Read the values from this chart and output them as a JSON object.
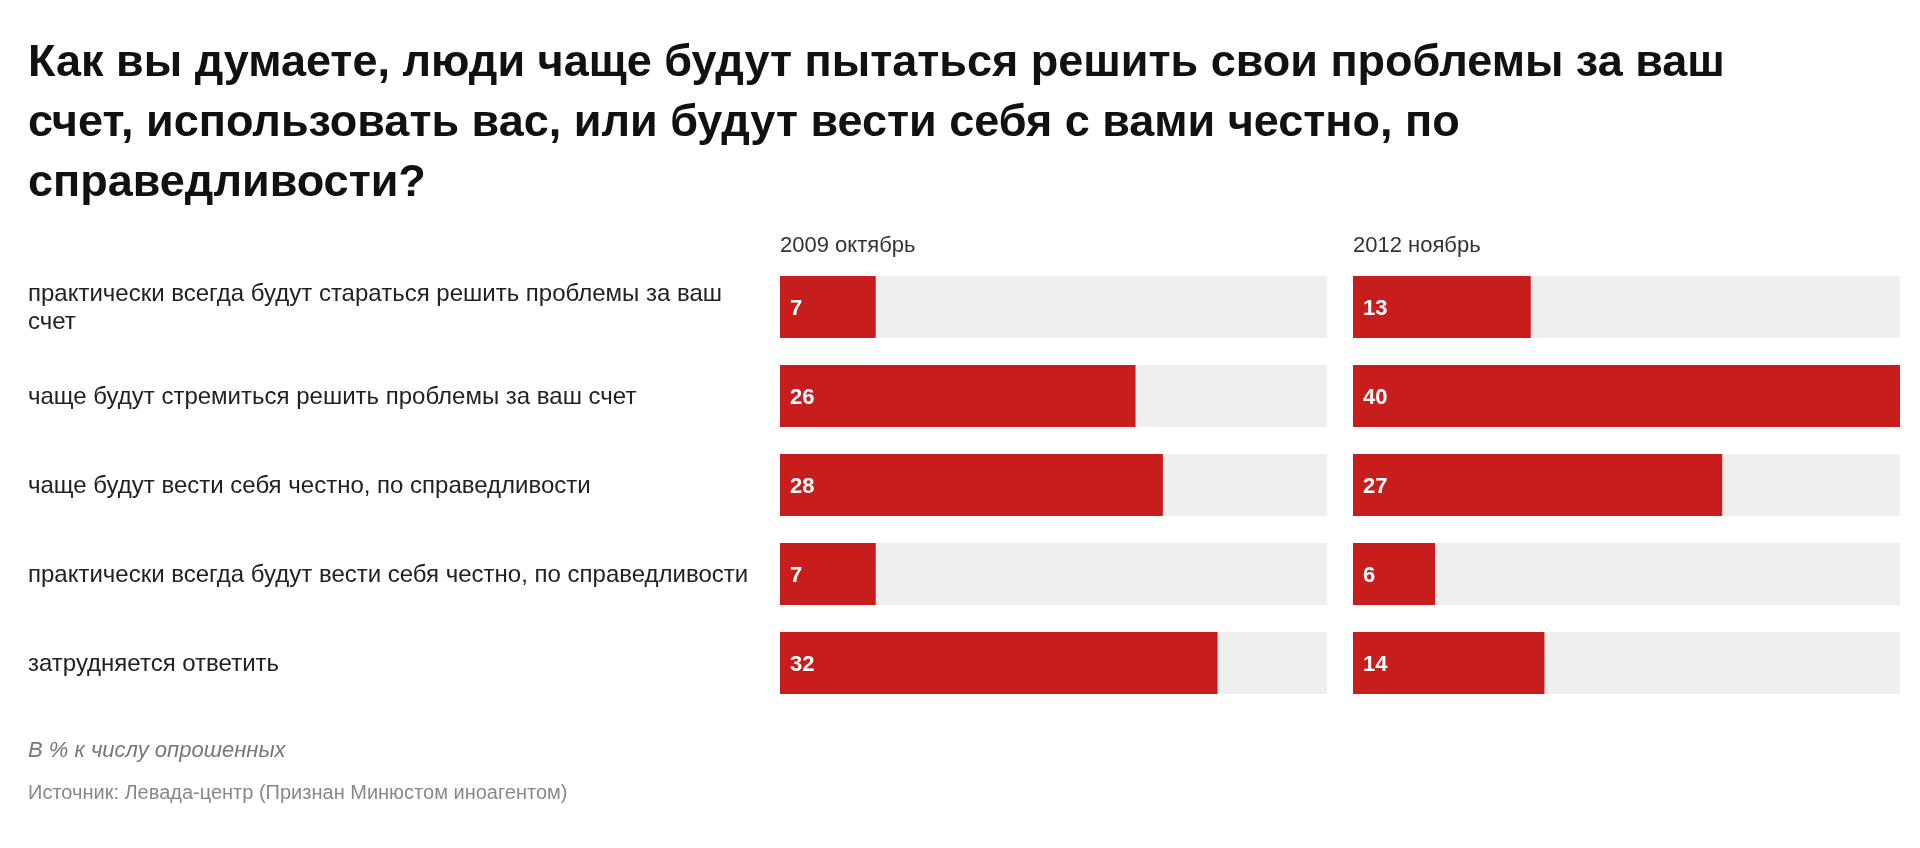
{
  "chart_data": [
    {
      "type": "bar",
      "orientation": "horizontal",
      "title": "Как вы думаете, люди чаще будут пытаться решить свои проблемы за ваш счет, использовать вас, или будут вести себя с вами честно, по справедливости?",
      "subtitle": "2009 октябрь",
      "categories": [
        "практически всегда будут стараться решить проблемы за ваш счет",
        "чаще будут стремиться решить проблемы за ваш счет",
        "чаще будут вести себя честно, по справедливости",
        "практически всегда будут вести себя честно, по справедливости",
        "затрудняется ответить"
      ],
      "values": [
        7,
        26,
        28,
        7,
        32
      ],
      "color": "#c71e1d",
      "xlim": [
        0,
        40
      ],
      "data_labels": true,
      "annotations": [
        "В % к числу опрошенных",
        "Источник: Левада-центр (Признан Минюстом иноагентом)"
      ]
    },
    {
      "type": "bar",
      "orientation": "horizontal",
      "title": "2012 ноябрь",
      "values": [
        13,
        40,
        27,
        6,
        14
      ],
      "color": "#c71e1d",
      "xlim": [
        0,
        40
      ],
      "data_labels": true,
      "tick_labels": false
    }
  ]
}
